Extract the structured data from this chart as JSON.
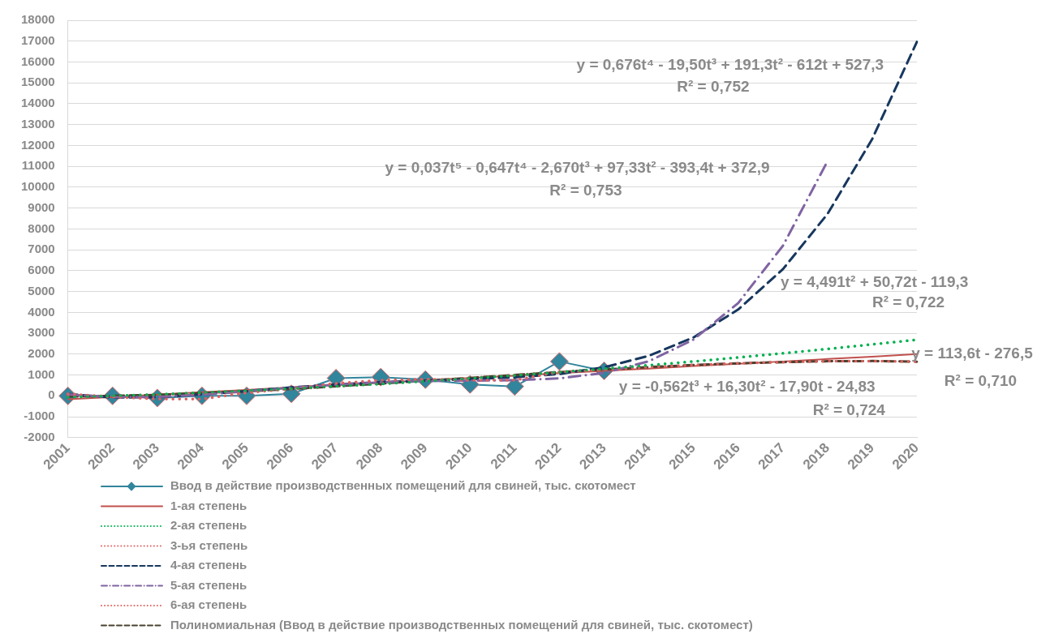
{
  "chart_data": {
    "type": "line",
    "categories": [
      "2001",
      "2002",
      "2003",
      "2004",
      "2005",
      "2006",
      "2007",
      "2008",
      "2009",
      "2010",
      "2011",
      "2012",
      "2013",
      "2014",
      "2015",
      "2016",
      "2017",
      "2018",
      "2019",
      "2020"
    ],
    "ylim": [
      -2000,
      18000
    ],
    "yticks": [
      -2000,
      -1000,
      0,
      1000,
      2000,
      3000,
      4000,
      5000,
      6000,
      7000,
      8000,
      9000,
      10000,
      11000,
      12000,
      13000,
      14000,
      15000,
      16000,
      17000,
      18000
    ],
    "grid": "y",
    "legend": "bottom",
    "series": [
      {
        "name": "Ввод в действие производственных помещений для свиней, тыс. скотомест",
        "color": "#31859c",
        "marker": "diamond",
        "line_style": "solid",
        "values": [
          0,
          0,
          -100,
          0,
          0,
          100,
          850,
          900,
          780,
          550,
          450,
          1650,
          1200,
          null,
          null,
          null,
          null,
          null,
          null,
          null
        ]
      },
      {
        "name": "1-ая степень",
        "color": "#c0504d",
        "line_style": "solid",
        "values": [
          -160,
          -50,
          60,
          180,
          290,
          410,
          520,
          630,
          750,
          860,
          970,
          1090,
          1200,
          1310,
          1430,
          1540,
          1650,
          1770,
          1880,
          2000
        ]
      },
      {
        "name": "2-ая степень",
        "color": "#00b050",
        "line_style": "dotted",
        "values": [
          -60,
          0,
          70,
          160,
          250,
          350,
          460,
          570,
          700,
          840,
          980,
          1140,
          1300,
          1470,
          1650,
          1840,
          2040,
          2250,
          2470,
          2690
        ]
      },
      {
        "name": "3-ья степень",
        "color": "#e06060",
        "line_style": "dotted",
        "values": [
          -30,
          0,
          50,
          130,
          220,
          330,
          460,
          590,
          730,
          860,
          1000,
          1140,
          1260,
          1380,
          1480,
          1560,
          1620,
          1660,
          1670,
          1640
        ]
      },
      {
        "name": "4-ая степень",
        "color": "#17375e",
        "line_style": "dashed",
        "values": [
          90,
          -80,
          -60,
          70,
          230,
          410,
          550,
          660,
          730,
          800,
          890,
          1050,
          1370,
          1920,
          2800,
          4140,
          6070,
          8720,
          12310,
          16970
        ]
      },
      {
        "name": "5-ая степень",
        "color": "#8064a2",
        "line_style": "dashdot",
        "values": [
          70,
          -60,
          -50,
          60,
          220,
          390,
          540,
          650,
          710,
          730,
          750,
          840,
          1100,
          1660,
          2700,
          4450,
          7190,
          11250,
          null,
          null
        ]
      },
      {
        "name": "6-ая степень",
        "color": "#e06060",
        "line_style": "dotted",
        "values": [
          100,
          -50,
          -150,
          -150,
          150,
          350,
          600,
          750,
          800,
          750,
          750,
          1150,
          1250,
          null,
          null,
          null,
          null,
          null,
          null,
          null
        ]
      },
      {
        "name": "Полиномиальная (Ввод в действие производственных помещений для свиней, тыс. скотомест)",
        "color": "#4a4230",
        "line_style": "dashed",
        "values": [
          -30,
          0,
          50,
          130,
          220,
          330,
          460,
          590,
          730,
          860,
          1000,
          1140,
          1260,
          1380,
          1480,
          1560,
          1620,
          1660,
          1670,
          1640
        ]
      }
    ],
    "annotations": [
      "y = 0,676t⁴ - 19,50t³ + 191,3t² - 612t + 527,3",
      "R² = 0,752",
      "y = 0,037t⁵ - 0,647t⁴ - 2,670t³ + 97,33t² - 393,4t + 372,9",
      "R² = 0,753",
      "y = 4,491t² + 50,72t - 119,3",
      "R² = 0,722",
      "y = 113,6t - 276,5",
      "R² = 0,710",
      "y = -0,562t³ + 16,30t² - 17,90t - 24,83",
      "R² = 0,724"
    ]
  }
}
